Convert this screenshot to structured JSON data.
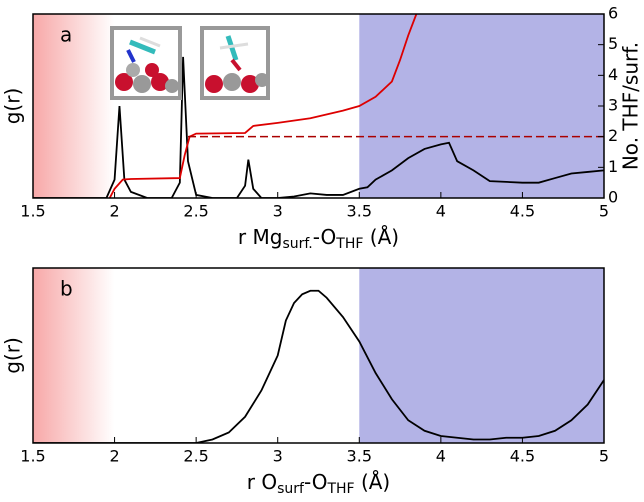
{
  "chart_data": [
    {
      "type": "line",
      "panel_label": "a",
      "xlabel": [
        "r Mg",
        "surf.",
        "-O",
        "THF",
        " (Å)"
      ],
      "ylabel": "g(r)",
      "y2label": "No. THF/surf.",
      "xlim": [
        1.5,
        5
      ],
      "xticks": [
        1.5,
        2,
        2.5,
        3,
        3.5,
        4,
        4.5,
        5
      ],
      "ylim": [
        0,
        6
      ],
      "y2lim": [
        0,
        6
      ],
      "y2ticks": [
        0,
        1,
        2,
        3,
        4,
        5,
        6
      ],
      "shaded_regions": [
        {
          "from": 1.5,
          "to": 2.0,
          "color": "#f7a8a8",
          "style": "gradient"
        },
        {
          "from": 3.5,
          "to": 5,
          "color": "#b3b3e6",
          "style": "solid"
        }
      ],
      "series": [
        {
          "color": "#000000",
          "axis": "y",
          "x": [
            1.5,
            1.95,
            2.0,
            2.03,
            2.06,
            2.1,
            2.2,
            2.35,
            2.4,
            2.42,
            2.45,
            2.5,
            2.6,
            2.75,
            2.8,
            2.82,
            2.85,
            2.9,
            3.0,
            3.1,
            3.2,
            3.3,
            3.4,
            3.5,
            3.55,
            3.6,
            3.7,
            3.8,
            3.9,
            4.0,
            4.05,
            4.1,
            4.2,
            4.3,
            4.5,
            4.6,
            4.7,
            4.8,
            4.9,
            5.0
          ],
          "values": [
            0,
            0,
            0.6,
            3.0,
            0.6,
            0.2,
            0,
            0,
            0.5,
            4.6,
            1.2,
            0.1,
            0,
            0,
            0.4,
            1.25,
            0.3,
            0,
            0,
            0.05,
            0.15,
            0.1,
            0.1,
            0.3,
            0.35,
            0.6,
            0.9,
            1.3,
            1.6,
            1.75,
            1.8,
            1.2,
            0.9,
            0.55,
            0.5,
            0.5,
            0.65,
            0.8,
            0.85,
            0.9
          ]
        },
        {
          "color": "#dd0000",
          "axis": "y2",
          "x": [
            1.97,
            2.0,
            2.05,
            2.1,
            2.4,
            2.43,
            2.46,
            2.5,
            2.8,
            2.85,
            3.0,
            3.2,
            3.4,
            3.5,
            3.6,
            3.7,
            3.75,
            3.8,
            3.85
          ],
          "values": [
            0,
            0.3,
            0.6,
            0.62,
            0.65,
            1.4,
            2.0,
            2.1,
            2.12,
            2.35,
            2.45,
            2.6,
            2.85,
            3.0,
            3.3,
            3.8,
            4.5,
            5.3,
            6.0
          ]
        },
        {
          "color": "#aa0000",
          "axis": "y2",
          "dash": true,
          "x": [
            2.45,
            5
          ],
          "values": [
            2,
            2
          ]
        }
      ]
    },
    {
      "type": "line",
      "panel_label": "b",
      "xlabel": [
        "r O",
        "surf",
        "-O",
        "THF",
        " (Å)"
      ],
      "ylabel": "g(r)",
      "xlim": [
        1.5,
        5
      ],
      "xticks": [
        1.5,
        2,
        2.5,
        3,
        3.5,
        4,
        4.5,
        5
      ],
      "ylim": [
        0,
        1
      ],
      "shaded_regions": [
        {
          "from": 1.5,
          "to": 2.0,
          "color": "#f7a8a8",
          "style": "gradient"
        },
        {
          "from": 3.5,
          "to": 5,
          "color": "#b3b3e6",
          "style": "solid"
        }
      ],
      "series": [
        {
          "color": "#000000",
          "axis": "y",
          "x": [
            1.5,
            2.5,
            2.6,
            2.7,
            2.8,
            2.9,
            3.0,
            3.05,
            3.1,
            3.15,
            3.2,
            3.25,
            3.3,
            3.4,
            3.5,
            3.6,
            3.7,
            3.8,
            3.9,
            4.0,
            4.1,
            4.2,
            4.3,
            4.4,
            4.5,
            4.6,
            4.7,
            4.8,
            4.9,
            5.0
          ],
          "values": [
            0,
            0,
            0.02,
            0.06,
            0.15,
            0.3,
            0.5,
            0.7,
            0.8,
            0.85,
            0.87,
            0.87,
            0.83,
            0.72,
            0.58,
            0.4,
            0.25,
            0.13,
            0.07,
            0.04,
            0.03,
            0.02,
            0.02,
            0.03,
            0.03,
            0.04,
            0.07,
            0.13,
            0.22,
            0.36
          ]
        }
      ]
    }
  ]
}
